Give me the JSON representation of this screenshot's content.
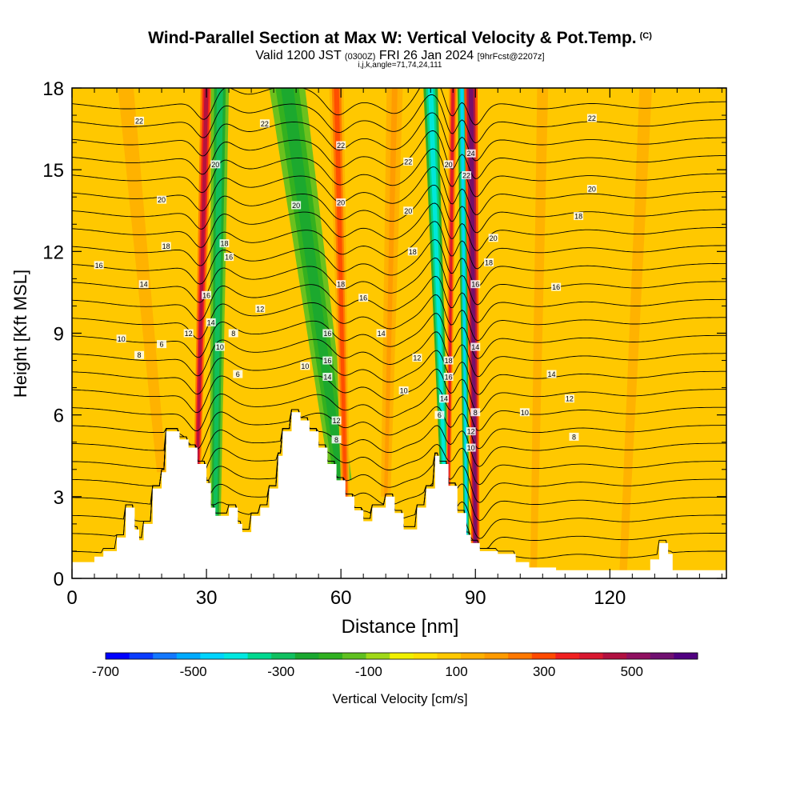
{
  "title": "Wind-Parallel Section at Max W: Vertical Velocity & Pot.Temp.",
  "title_mark": "(C)",
  "subtitle_parts": [
    "Valid 1200 JST",
    "(0300Z)",
    "FRI 26 Jan 2024",
    "[9hrFcst@2207z]"
  ],
  "subtitle_indices": "i,j,k,angle=71,74,24,111",
  "chart_data": {
    "type": "heatmap",
    "title": "Wind-Parallel Section at Max W: Vertical Velocity & Pot.Temp.",
    "xlabel": "Distance [nm]",
    "ylabel": "Height [Kft MSL]",
    "xlim": [
      0,
      146
    ],
    "ylim": [
      0,
      18
    ],
    "x_ticks": [
      0,
      30,
      60,
      90,
      120
    ],
    "y_ticks": [
      0,
      3,
      6,
      9,
      12,
      15,
      18
    ],
    "colorbar": {
      "label": "Vertical Velocity [cm/s]",
      "range": [
        -700,
        650
      ],
      "ticks": [
        -700,
        -500,
        -300,
        -100,
        100,
        300,
        500
      ],
      "colors": [
        "#0000ff",
        "#0a3cff",
        "#1478ff",
        "#00aaff",
        "#00d4ff",
        "#00e8e0",
        "#00d890",
        "#10c060",
        "#1aa830",
        "#30b020",
        "#60c020",
        "#a0d818",
        "#f0f000",
        "#ffe000",
        "#ffc800",
        "#ffb000",
        "#ff9a00",
        "#ff7800",
        "#ff4a00",
        "#f02020",
        "#d81830",
        "#b01040",
        "#901060",
        "#701070",
        "#500080"
      ]
    },
    "terrain": [
      [
        0,
        0.6
      ],
      [
        5,
        0.6
      ],
      [
        5,
        0.8
      ],
      [
        7,
        0.8
      ],
      [
        7,
        1.0
      ],
      [
        10,
        1.0
      ],
      [
        10,
        1.5
      ],
      [
        12,
        1.5
      ],
      [
        12,
        2.6
      ],
      [
        14,
        2.6
      ],
      [
        14,
        1.8
      ],
      [
        15,
        1.8
      ],
      [
        15,
        1.4
      ],
      [
        16,
        1.4
      ],
      [
        16,
        2.0
      ],
      [
        18,
        2.0
      ],
      [
        18,
        3.3
      ],
      [
        20,
        3.3
      ],
      [
        20,
        3.9
      ],
      [
        21,
        3.9
      ],
      [
        21,
        5.4
      ],
      [
        24,
        5.4
      ],
      [
        24,
        5.1
      ],
      [
        26,
        5.1
      ],
      [
        26,
        4.8
      ],
      [
        28,
        4.8
      ],
      [
        28,
        4.2
      ],
      [
        30,
        4.2
      ],
      [
        30,
        3.5
      ],
      [
        31,
        3.5
      ],
      [
        31,
        2.6
      ],
      [
        32,
        2.6
      ],
      [
        32,
        2.3
      ],
      [
        35,
        2.3
      ],
      [
        35,
        2.6
      ],
      [
        37,
        2.6
      ],
      [
        37,
        2.0
      ],
      [
        38,
        2.0
      ],
      [
        38,
        1.7
      ],
      [
        40,
        1.7
      ],
      [
        40,
        2.3
      ],
      [
        42,
        2.3
      ],
      [
        42,
        2.6
      ],
      [
        44,
        2.6
      ],
      [
        44,
        3.3
      ],
      [
        46,
        3.3
      ],
      [
        46,
        4.5
      ],
      [
        47,
        4.5
      ],
      [
        47,
        5.4
      ],
      [
        49,
        5.4
      ],
      [
        49,
        6.1
      ],
      [
        51,
        6.1
      ],
      [
        51,
        5.8
      ],
      [
        53,
        5.8
      ],
      [
        53,
        5.4
      ],
      [
        55,
        5.4
      ],
      [
        55,
        4.8
      ],
      [
        57,
        4.8
      ],
      [
        57,
        4.2
      ],
      [
        59,
        4.2
      ],
      [
        59,
        3.6
      ],
      [
        61,
        3.6
      ],
      [
        61,
        3.0
      ],
      [
        63,
        3.0
      ],
      [
        63,
        2.5
      ],
      [
        65,
        2.5
      ],
      [
        65,
        2.1
      ],
      [
        67,
        2.1
      ],
      [
        67,
        2.6
      ],
      [
        70,
        2.6
      ],
      [
        70,
        3.0
      ],
      [
        72,
        3.0
      ],
      [
        72,
        2.4
      ],
      [
        74,
        2.4
      ],
      [
        74,
        1.8
      ],
      [
        77,
        1.8
      ],
      [
        77,
        2.6
      ],
      [
        79,
        2.6
      ],
      [
        79,
        3.3
      ],
      [
        81,
        3.3
      ],
      [
        81,
        4.5
      ],
      [
        82,
        4.5
      ],
      [
        82,
        4.2
      ],
      [
        84,
        4.2
      ],
      [
        84,
        3.4
      ],
      [
        86,
        3.4
      ],
      [
        86,
        2.4
      ],
      [
        88,
        2.4
      ],
      [
        88,
        1.6
      ],
      [
        89,
        1.6
      ],
      [
        89,
        1.3
      ],
      [
        91,
        1.3
      ],
      [
        91,
        1.0
      ],
      [
        95,
        1.0
      ],
      [
        95,
        0.9
      ],
      [
        99,
        0.9
      ],
      [
        99,
        0.6
      ],
      [
        102,
        0.6
      ],
      [
        102,
        0.4
      ],
      [
        108,
        0.4
      ],
      [
        108,
        0.3
      ],
      [
        129,
        0.3
      ],
      [
        129,
        0.7
      ],
      [
        131,
        0.7
      ],
      [
        131,
        1.3
      ],
      [
        133,
        1.3
      ],
      [
        133,
        0.9
      ],
      [
        134,
        0.9
      ],
      [
        134,
        0.3
      ],
      [
        146,
        0.3
      ]
    ],
    "w_bands": [
      {
        "x0": 28,
        "xtop": 30,
        "w": 450,
        "width": 1.3
      },
      {
        "x0": 32,
        "xtop": 33,
        "w": -280,
        "width": 2.0
      },
      {
        "x0": 60,
        "xtop": 48,
        "w": -260,
        "width": 4.0
      },
      {
        "x0": 61,
        "xtop": 59,
        "w": 280,
        "width": 1.6
      },
      {
        "x0": 70,
        "xtop": 72,
        "w": 200,
        "width": 1.8
      },
      {
        "x0": 83,
        "xtop": 80,
        "w": -420,
        "width": 1.6
      },
      {
        "x0": 84,
        "xtop": 85,
        "w": 380,
        "width": 0.9
      },
      {
        "x0": 88,
        "xtop": 87,
        "w": -450,
        "width": 1.0
      },
      {
        "x0": 90,
        "xtop": 89,
        "w": 560,
        "width": 1.5
      },
      {
        "x0": 103,
        "xtop": 105,
        "w": 120,
        "width": 3.5
      },
      {
        "x0": 123,
        "xtop": 128,
        "w": 110,
        "width": 4.0
      },
      {
        "x0": 20,
        "xtop": 12,
        "w": 120,
        "width": 5.0
      }
    ],
    "theta_contour_labels": [
      {
        "x": 15,
        "y": 16.8,
        "label": "22"
      },
      {
        "x": 20,
        "y": 13.9,
        "label": "20"
      },
      {
        "x": 21,
        "y": 12.2,
        "label": "18"
      },
      {
        "x": 6,
        "y": 11.5,
        "label": "16"
      },
      {
        "x": 16,
        "y": 10.8,
        "label": "14"
      },
      {
        "x": 11,
        "y": 8.8,
        "label": "10"
      },
      {
        "x": 15,
        "y": 8.2,
        "label": "8"
      },
      {
        "x": 20,
        "y": 8.6,
        "label": "6"
      },
      {
        "x": 26,
        "y": 9.0,
        "label": "12"
      },
      {
        "x": 32,
        "y": 15.2,
        "label": "20"
      },
      {
        "x": 34,
        "y": 12.3,
        "label": "18"
      },
      {
        "x": 35,
        "y": 11.8,
        "label": "16"
      },
      {
        "x": 30,
        "y": 10.4,
        "label": "16"
      },
      {
        "x": 31,
        "y": 9.4,
        "label": "14"
      },
      {
        "x": 33,
        "y": 8.5,
        "label": "10"
      },
      {
        "x": 36,
        "y": 9.0,
        "label": "8"
      },
      {
        "x": 37,
        "y": 7.5,
        "label": "6"
      },
      {
        "x": 43,
        "y": 16.7,
        "label": "22"
      },
      {
        "x": 42,
        "y": 9.9,
        "label": "12"
      },
      {
        "x": 50,
        "y": 13.7,
        "label": "20"
      },
      {
        "x": 60,
        "y": 15.9,
        "label": "22"
      },
      {
        "x": 60,
        "y": 13.8,
        "label": "20"
      },
      {
        "x": 60,
        "y": 10.8,
        "label": "18"
      },
      {
        "x": 65,
        "y": 10.3,
        "label": "16"
      },
      {
        "x": 57,
        "y": 9.0,
        "label": "16"
      },
      {
        "x": 52,
        "y": 7.8,
        "label": "10"
      },
      {
        "x": 57,
        "y": 8.0,
        "label": "16"
      },
      {
        "x": 57,
        "y": 7.4,
        "label": "14"
      },
      {
        "x": 59,
        "y": 5.8,
        "label": "12"
      },
      {
        "x": 59,
        "y": 5.1,
        "label": "8"
      },
      {
        "x": 69,
        "y": 9.0,
        "label": "14"
      },
      {
        "x": 75,
        "y": 15.3,
        "label": "22"
      },
      {
        "x": 75,
        "y": 13.5,
        "label": "20"
      },
      {
        "x": 76,
        "y": 12.0,
        "label": "18"
      },
      {
        "x": 77,
        "y": 8.1,
        "label": "12"
      },
      {
        "x": 74,
        "y": 6.9,
        "label": "10"
      },
      {
        "x": 84,
        "y": 8.0,
        "label": "18"
      },
      {
        "x": 84,
        "y": 7.4,
        "label": "16"
      },
      {
        "x": 83,
        "y": 6.6,
        "label": "14"
      },
      {
        "x": 82,
        "y": 6.0,
        "label": "6"
      },
      {
        "x": 84,
        "y": 15.2,
        "label": "20"
      },
      {
        "x": 89,
        "y": 15.6,
        "label": "24"
      },
      {
        "x": 88,
        "y": 14.8,
        "label": "22"
      },
      {
        "x": 94,
        "y": 12.5,
        "label": "20"
      },
      {
        "x": 93,
        "y": 11.6,
        "label": "18"
      },
      {
        "x": 90,
        "y": 10.8,
        "label": "16"
      },
      {
        "x": 90,
        "y": 8.5,
        "label": "14"
      },
      {
        "x": 90,
        "y": 6.1,
        "label": "8"
      },
      {
        "x": 89,
        "y": 5.4,
        "label": "12"
      },
      {
        "x": 89,
        "y": 4.8,
        "label": "10"
      },
      {
        "x": 108,
        "y": 10.7,
        "label": "16"
      },
      {
        "x": 107,
        "y": 7.5,
        "label": "14"
      },
      {
        "x": 111,
        "y": 6.6,
        "label": "12"
      },
      {
        "x": 101,
        "y": 6.1,
        "label": "10"
      },
      {
        "x": 112,
        "y": 5.2,
        "label": "8"
      },
      {
        "x": 116,
        "y": 14.3,
        "label": "20"
      },
      {
        "x": 113,
        "y": 13.3,
        "label": "18"
      },
      {
        "x": 116,
        "y": 16.9,
        "label": "22"
      }
    ]
  }
}
